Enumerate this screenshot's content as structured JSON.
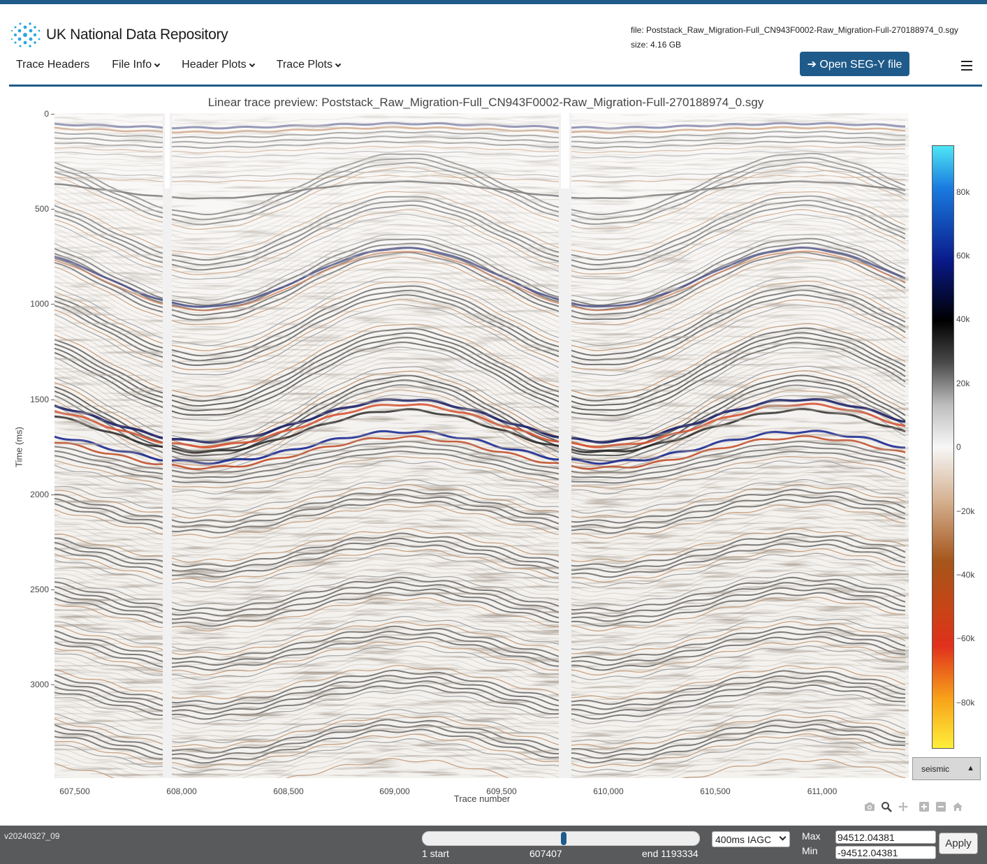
{
  "header": {
    "logo_text": "UK National Data Repository",
    "file_line": "file: Poststack_Raw_Migration-Full_CN943F0002-Raw_Migration-Full-270188974_0.sgy",
    "size_line": "size: 4.16 GB",
    "open_button_label": "➔ Open SEG-Y file"
  },
  "nav": {
    "items": [
      {
        "label": "Trace Headers",
        "dropdown": false
      },
      {
        "label": "File Info",
        "dropdown": true
      },
      {
        "label": "Header Plots",
        "dropdown": true
      },
      {
        "label": "Trace Plots",
        "dropdown": true
      }
    ]
  },
  "plot": {
    "title": "Linear trace preview: Poststack_Raw_Migration-Full_CN943F0002-Raw_Migration-Full-270188974_0.sgy",
    "y_axis_label": "Time (ms)",
    "x_axis_label": "Trace number",
    "y_ticks": [
      "0",
      "500",
      "1000",
      "1500",
      "2000",
      "2500",
      "3000"
    ],
    "x_ticks": [
      "607,500",
      "608,000",
      "608,500",
      "609,000",
      "609,500",
      "610,000",
      "610,500",
      "611,000"
    ],
    "colorbar_ticks": [
      "80k",
      "60k",
      "40k",
      "20k",
      "0",
      "−20k",
      "−40k",
      "−60k",
      "−80k"
    ],
    "colormap_label": "seismic",
    "colormap_arrow": "▲"
  },
  "chart_data": {
    "type": "heatmap",
    "title": "Linear trace preview: Poststack_Raw_Migration-Full_CN943F0002-Raw_Migration-Full-270188974_0.sgy",
    "xlabel": "Trace number",
    "ylabel": "Time (ms)",
    "xlim": [
      607407,
      611407
    ],
    "ylim": [
      3500,
      0
    ],
    "x_ticks": [
      607500,
      608000,
      608500,
      609000,
      609500,
      610000,
      610500,
      611000
    ],
    "y_ticks": [
      0,
      500,
      1000,
      1500,
      2000,
      2500,
      3000
    ],
    "colorscale": "seismic",
    "zlim": [
      -94512.04381,
      94512.04381
    ],
    "colorbar_ticks": [
      80000,
      60000,
      40000,
      20000,
      0,
      -20000,
      -40000,
      -60000,
      -80000
    ],
    "colors": {
      "high": "#4ee6f5",
      "mid_high": "#0a1a8a",
      "black": "#000000",
      "zero": "#f7f7f7",
      "brown": "#a5551a",
      "red": "#e0301c",
      "low": "#ffef3a"
    },
    "grid": false
  },
  "footer": {
    "version": "v20240327_09",
    "slider_start_label": "1 start",
    "slider_value_label": "607407",
    "slider_end_label": "end 1193334",
    "slider_fraction": 0.509,
    "agc_option": "400ms IAGC",
    "max_label": "Max",
    "min_label": "Min",
    "max_value": "94512.04381",
    "min_value": "-94512.04381",
    "apply_label": "Apply"
  },
  "icons": [
    "camera-icon",
    "zoom-icon",
    "pan-icon",
    "zoom-in-icon",
    "zoom-out-icon",
    "home-icon",
    "menu-icon"
  ]
}
